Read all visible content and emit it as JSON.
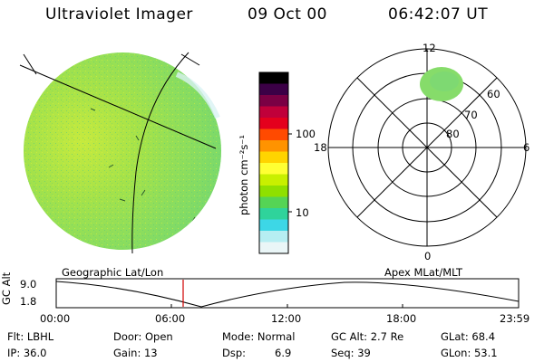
{
  "header": {
    "instrument": "Ultraviolet Imager",
    "date": "09 Oct 00",
    "time": "06:42:07 UT"
  },
  "colorbar": {
    "unit_label": "photon cm⁻²s⁻¹",
    "ticks": [
      "100",
      "10"
    ],
    "colors": [
      "#000000",
      "#3b0046",
      "#7a0044",
      "#c0003a",
      "#e4001d",
      "#ff4a00",
      "#ff9300",
      "#ffd400",
      "#ffff33",
      "#c8f000",
      "#8fe000",
      "#55d455",
      "#2fd39b",
      "#3dd7e6",
      "#b6eef2",
      "#eaf6f7"
    ]
  },
  "polar_plot": {
    "mlt_labels": {
      "top": "12",
      "right": "6",
      "bottom": "0",
      "left": "18"
    },
    "lat_labels": [
      "60",
      "70",
      "80"
    ]
  },
  "panel_labels": {
    "left": "Geographic Lat/Lon",
    "right": "Apex MLat/MLT"
  },
  "altitude_plot": {
    "ylabel": "GC Alt",
    "yticks": [
      "9.0",
      "1.8"
    ],
    "xticks": [
      "00:00",
      "06:00",
      "12:00",
      "18:00",
      "23:59"
    ],
    "marker_time": "06:42"
  },
  "info": {
    "filter": "Flt: LBHL",
    "ip": "IP: 36.0",
    "door": "Door: Open",
    "gain": "Gain: 13",
    "mode": "Mode: Normal",
    "dsp_label": "Dsp:",
    "dsp_value": "6.9",
    "gc_alt": "GC Alt: 2.7 Re",
    "seq": "Seq: 39",
    "glat": "GLat: 68.4",
    "glon": "GLon: 53.1"
  },
  "colors": {
    "earth_green": "#9fe05a",
    "aurora_green": "#8ee06a",
    "marker_red": "#d00000"
  }
}
